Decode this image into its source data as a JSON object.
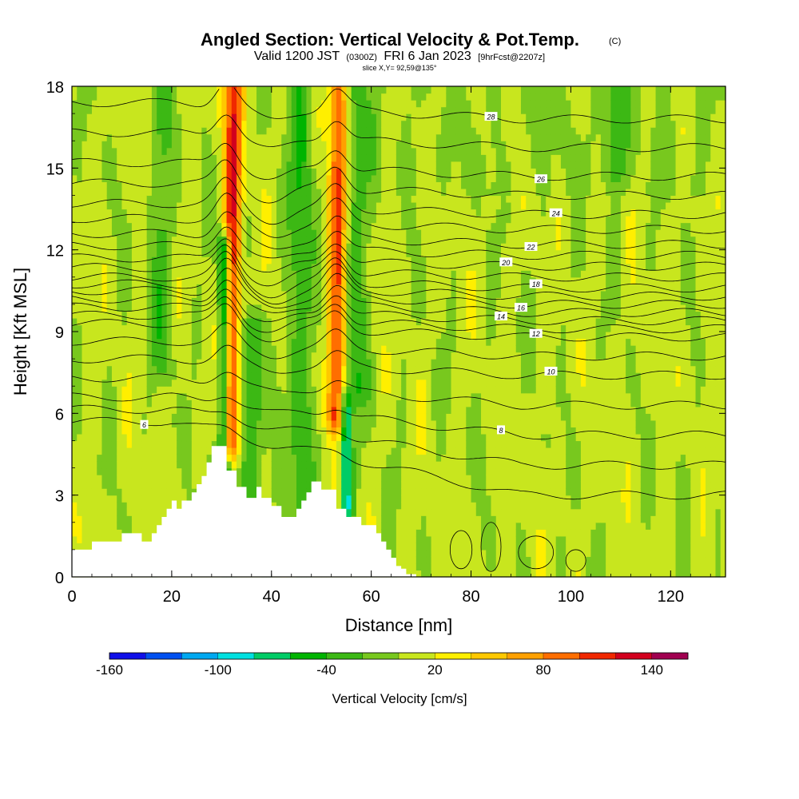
{
  "header": {
    "title_main": "Angled Section: Vertical Velocity & Pot.Temp.",
    "title_copyright": "(C)",
    "valid_prefix": "Valid 1200 JST",
    "valid_zulu": "(0300Z)",
    "valid_date": "FRI 6 Jan 2023",
    "forecast_tag": "[9hrFcst@2207z]",
    "slice_info": "slice X,Y= 92,59@135°"
  },
  "chart_data": {
    "type": "heatmap",
    "xlabel": "Distance [nm]",
    "ylabel": "Height [Kft MSL]",
    "xlim": [
      0,
      131
    ],
    "ylim": [
      0,
      18
    ],
    "x_ticks": [
      "0",
      "20",
      "40",
      "60",
      "80",
      "100",
      "120"
    ],
    "y_ticks": [
      "0",
      "3",
      "6",
      "9",
      "12",
      "15",
      "18"
    ],
    "grid": false,
    "colorbar": {
      "title": "Vertical Velocity [cm/s]",
      "levels": [
        -160,
        -140,
        -120,
        -100,
        -80,
        -60,
        -40,
        -20,
        0,
        20,
        40,
        60,
        80,
        100,
        120,
        140,
        160
      ],
      "tick_labels": [
        "-160",
        "-100",
        "-40",
        "20",
        "80",
        "140"
      ],
      "colors": [
        "#1010e8",
        "#0050f0",
        "#00a8f0",
        "#00e0e0",
        "#00cc66",
        "#00b400",
        "#3cb814",
        "#78c81e",
        "#c8e61e",
        "#ffef00",
        "#ffc800",
        "#ffa000",
        "#ff6e00",
        "#f02800",
        "#d2001e",
        "#a00050",
        "#64008c"
      ]
    },
    "terrain": {
      "x": [
        0,
        4,
        4,
        10,
        10,
        14,
        14,
        16,
        16,
        17,
        17,
        18,
        18,
        19,
        19,
        20,
        20,
        21,
        21,
        22,
        22,
        24,
        24,
        25,
        25,
        26,
        26,
        27,
        27,
        28,
        28,
        31,
        31,
        33,
        33,
        35,
        35,
        37,
        37,
        38,
        38,
        40,
        40,
        42,
        42,
        45,
        45,
        46,
        46,
        47,
        47,
        48,
        48,
        50,
        50,
        53,
        53,
        55,
        55,
        58,
        58,
        61,
        61,
        62,
        62,
        63,
        63,
        64,
        64,
        65,
        65,
        66,
        66,
        67,
        67,
        69,
        69,
        71,
        71,
        73,
        73
      ],
      "height_kft": [
        1.0,
        1.0,
        1.3,
        1.3,
        1.6,
        1.6,
        1.3,
        1.3,
        1.6,
        1.6,
        1.9,
        1.9,
        2.2,
        2.2,
        2.5,
        2.5,
        2.8,
        2.8,
        2.5,
        2.5,
        2.8,
        2.8,
        3.1,
        3.1,
        3.4,
        3.4,
        3.7,
        3.7,
        4.2,
        4.2,
        4.8,
        4.8,
        3.9,
        3.9,
        3.3,
        3.3,
        2.9,
        2.9,
        3.3,
        3.3,
        2.9,
        2.9,
        2.6,
        2.6,
        2.2,
        2.2,
        2.5,
        2.5,
        2.8,
        2.8,
        3.1,
        3.1,
        3.5,
        3.5,
        3.2,
        3.2,
        2.5,
        2.5,
        2.2,
        2.2,
        1.9,
        1.9,
        1.6,
        1.6,
        1.3,
        1.3,
        1.0,
        1.0,
        0.7,
        0.7,
        0.4,
        0.4,
        0.3,
        0.3,
        0.1,
        0.1,
        0.0,
        0.0,
        0.0,
        0.0,
        0.0
      ]
    },
    "velocity_features": [
      {
        "kind": "updraft",
        "center_x_nm": 32,
        "peak_cm_s": 110,
        "bottom_kft": 5,
        "top_kft": 18
      },
      {
        "kind": "updraft",
        "center_x_nm": 53,
        "peak_cm_s": 100,
        "bottom_kft": 6,
        "top_kft": 18
      },
      {
        "kind": "downdraft",
        "center_x_nm": 30.5,
        "peak_cm_s": -100,
        "bottom_kft": 4,
        "top_kft": 12
      },
      {
        "kind": "downdraft",
        "center_x_nm": 55,
        "peak_cm_s": -95,
        "bottom_kft": 2.5,
        "top_kft": 6
      },
      {
        "kind": "downdraft",
        "center_x_nm": 36,
        "peak_cm_s": -45,
        "bottom_kft": 2.5,
        "top_kft": 9
      },
      {
        "kind": "downdraft",
        "center_x_nm": 46,
        "peak_cm_s": -45,
        "bottom_kft": 2,
        "top_kft": 18
      },
      {
        "kind": "downdraft",
        "center_x_nm": 57,
        "peak_cm_s": -40,
        "bottom_kft": 7,
        "top_kft": 18
      },
      {
        "kind": "downdraft",
        "center_x_nm": 18,
        "peak_cm_s": -30,
        "bottom_kft": 8,
        "top_kft": 18
      },
      {
        "kind": "downdraft",
        "center_x_nm": 109,
        "peak_cm_s": -35,
        "bottom_kft": 15,
        "top_kft": 18
      }
    ],
    "theta_contours": [
      {
        "value": 6,
        "label": "6",
        "label_x": 14.5,
        "y_far": 3,
        "y_near": 5.7
      },
      {
        "value": 8,
        "label": "8",
        "label_x": 86,
        "y_far": 5.2,
        "y_near": 6.6
      },
      {
        "value": 10,
        "label": "10",
        "label_x": 96,
        "y_far": 7.4,
        "y_near": 8
      },
      {
        "value": 12,
        "label": "12",
        "label_x": 93,
        "y_far": 8.8,
        "y_near": 9.3
      },
      {
        "value": 14,
        "label": "14",
        "label_x": 86,
        "y_far": 9.4,
        "y_near": 9.9
      },
      {
        "value": 16,
        "label": "16",
        "label_x": 90,
        "y_far": 10.0,
        "y_near": 10.5
      },
      {
        "value": 18,
        "label": "18",
        "label_x": 93,
        "y_far": 10.6,
        "y_near": 11.0
      },
      {
        "value": 20,
        "label": "20",
        "label_x": 87,
        "y_far": 11.4,
        "y_near": 11.7
      },
      {
        "value": 22,
        "label": "22",
        "label_x": 92,
        "y_far": 12.2,
        "y_near": 12.6
      },
      {
        "value": 24,
        "label": "24",
        "label_x": 97,
        "y_far": 13.3,
        "y_near": 13.7
      },
      {
        "value": 26,
        "label": "26",
        "label_x": 94,
        "y_far": 14.7,
        "y_near": 15.2
      },
      {
        "value": 28,
        "label": "28",
        "label_x": 84,
        "y_far": 16.8,
        "y_near": 17.4
      }
    ]
  }
}
